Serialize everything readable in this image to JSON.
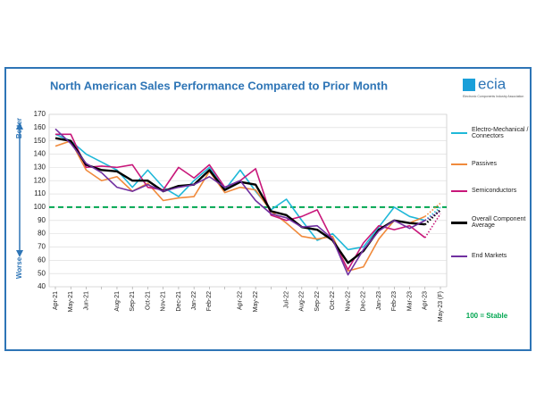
{
  "chart_data": {
    "type": "line",
    "title": "North American Sales Performance Compared to Prior Month",
    "categories": [
      "Apr-21",
      "May-21",
      "Jun-21",
      null,
      "Aug-21",
      "Sep-21",
      "Oct-21",
      "Nov-21",
      "Dec-21",
      "Jan-22",
      "Feb-22",
      null,
      "Apr-22",
      "May-22",
      null,
      "Jul-22",
      "Aug-22",
      "Sep-22",
      "Oct-22",
      "Nov-22",
      "Dec-22",
      "Jan-23",
      "Feb-23",
      "Mar-23",
      "Apr-23",
      "May-23 (F)"
    ],
    "series": [
      {
        "name": "Electro-Mechanical / Connectors",
        "color": "#1fb8d8",
        "values": [
          155,
          150,
          140,
          134,
          128,
          115,
          128,
          115,
          108,
          120,
          130,
          113,
          128,
          112,
          98,
          106,
          90,
          75,
          80,
          68,
          70,
          85,
          100,
          93,
          90,
          100
        ]
      },
      {
        "name": "Passives",
        "color": "#f08a3c",
        "values": [
          146,
          150,
          128,
          120,
          123,
          112,
          118,
          105,
          107,
          108,
          127,
          111,
          115,
          113,
          97,
          88,
          78,
          76,
          78,
          52,
          55,
          76,
          90,
          88,
          93,
          103
        ]
      },
      {
        "name": "Semiconductors",
        "color": "#c8177a",
        "values": [
          155,
          155,
          130,
          131,
          130,
          132,
          115,
          113,
          130,
          122,
          132,
          115,
          120,
          129,
          94,
          90,
          93,
          98,
          75,
          53,
          73,
          86,
          83,
          86,
          77,
          95
        ]
      },
      {
        "name": "Overall Component Average",
        "color": "#000000",
        "values": [
          152,
          150,
          132,
          128,
          127,
          120,
          120,
          112,
          116,
          117,
          128,
          113,
          119,
          117,
          97,
          94,
          85,
          83,
          75,
          58,
          67,
          83,
          90,
          88,
          87,
          98
        ]
      },
      {
        "name": "End Markets",
        "color": "#7030a0",
        "values": [
          159,
          148,
          133,
          126,
          115,
          112,
          117,
          112,
          115,
          117,
          123,
          115,
          120,
          105,
          95,
          92,
          85,
          86,
          76,
          49,
          68,
          82,
          90,
          84,
          90,
          97
        ]
      }
    ],
    "ylim": [
      40,
      170
    ],
    "yticks": [
      40,
      50,
      60,
      70,
      80,
      90,
      100,
      110,
      120,
      130,
      140,
      150,
      160,
      170
    ],
    "grid": true,
    "reference_line": {
      "value": 100,
      "label": "100 = Stable",
      "color": "#00a650"
    },
    "y_annotations": {
      "top": "Better",
      "bottom": "Worse"
    },
    "legend": "right"
  },
  "logo": {
    "text": "ecia",
    "subtitle": "Electronic Components Industry Association"
  }
}
